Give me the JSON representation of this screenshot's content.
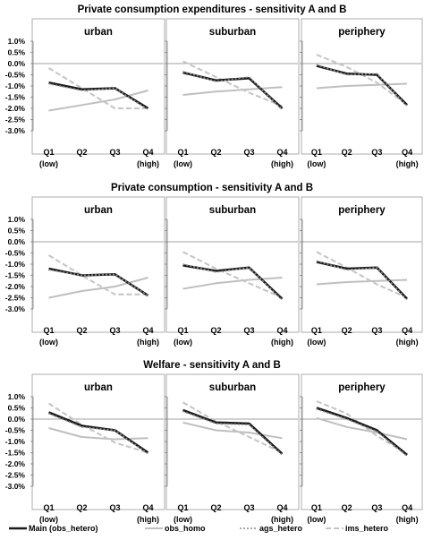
{
  "chart_data": {
    "type": "line",
    "legend": {
      "placement": "bottom",
      "entries": [
        {
          "label": "Main (obs_hetero)",
          "color": "#1a1a1a",
          "style": "thick-solid"
        },
        {
          "label": "obs_homo",
          "color": "#bfbfbf",
          "style": "solid"
        },
        {
          "label": "ags_hetero",
          "color": "#8c8c8c",
          "style": "dotted"
        },
        {
          "label": "ims_hetero",
          "color": "#bfbfbf",
          "style": "dashed"
        }
      ]
    },
    "categories": [
      "Q1",
      "Q2",
      "Q3",
      "Q4"
    ],
    "category_sublabels": [
      "(low)",
      "",
      "",
      "(high)"
    ],
    "ylim": [
      -3.0,
      1.0
    ],
    "ytick_labels": [
      "1.0%",
      "0.5%",
      "0.0%",
      "-0.5%",
      "-1.0%",
      "-1.5%",
      "-2.0%",
      "-2.5%",
      "-3.0%"
    ],
    "ytick_values": [
      1.0,
      0.5,
      0.0,
      -0.5,
      -1.0,
      -1.5,
      -2.0,
      -2.5,
      -3.0
    ],
    "grid": false,
    "rows": [
      {
        "title": "Private consumption expenditures - sensitivity A and B",
        "panels": [
          {
            "title": "urban",
            "series": [
              {
                "key": "main",
                "values": [
                  -0.85,
                  -1.15,
                  -1.1,
                  -2.0
                ]
              },
              {
                "key": "obs_homo",
                "values": [
                  -2.1,
                  -1.85,
                  -1.6,
                  -1.2
                ]
              },
              {
                "key": "ags",
                "values": [
                  -0.9,
                  -1.2,
                  -1.1,
                  -2.05
                ]
              },
              {
                "key": "ims",
                "values": [
                  -0.2,
                  -1.1,
                  -2.0,
                  -2.0
                ]
              }
            ]
          },
          {
            "title": "suburban",
            "series": [
              {
                "key": "main",
                "values": [
                  -0.4,
                  -0.75,
                  -0.65,
                  -2.0
                ]
              },
              {
                "key": "obs_homo",
                "values": [
                  -1.4,
                  -1.25,
                  -1.15,
                  -1.05
                ]
              },
              {
                "key": "ags",
                "values": [
                  -0.35,
                  -0.8,
                  -0.6,
                  -2.05
                ]
              },
              {
                "key": "ims",
                "values": [
                  0.1,
                  -0.6,
                  -1.3,
                  -1.9
                ]
              }
            ]
          },
          {
            "title": "periphery",
            "series": [
              {
                "key": "main",
                "values": [
                  -0.1,
                  -0.45,
                  -0.5,
                  -1.85
                ]
              },
              {
                "key": "obs_homo",
                "values": [
                  -1.1,
                  -1.0,
                  -0.95,
                  -0.9
                ]
              },
              {
                "key": "ags",
                "values": [
                  -0.05,
                  -0.5,
                  -0.45,
                  -1.9
                ]
              },
              {
                "key": "ims",
                "values": [
                  0.4,
                  -0.15,
                  -0.85,
                  -1.85
                ]
              }
            ]
          }
        ]
      },
      {
        "title": "Private consumption - sensitivity A and B",
        "panels": [
          {
            "title": "urban",
            "series": [
              {
                "key": "main",
                "values": [
                  -1.2,
                  -1.5,
                  -1.45,
                  -2.4
                ]
              },
              {
                "key": "obs_homo",
                "values": [
                  -2.5,
                  -2.2,
                  -2.0,
                  -1.6
                ]
              },
              {
                "key": "ags",
                "values": [
                  -1.25,
                  -1.5,
                  -1.45,
                  -2.4
                ]
              },
              {
                "key": "ims",
                "values": [
                  -0.6,
                  -1.5,
                  -2.35,
                  -2.35
                ]
              }
            ]
          },
          {
            "title": "suburban",
            "series": [
              {
                "key": "main",
                "values": [
                  -1.05,
                  -1.3,
                  -1.15,
                  -2.55
                ]
              },
              {
                "key": "obs_homo",
                "values": [
                  -2.1,
                  -1.85,
                  -1.7,
                  -1.6
                ]
              },
              {
                "key": "ags",
                "values": [
                  -1.0,
                  -1.35,
                  -1.15,
                  -2.6
                ]
              },
              {
                "key": "ims",
                "values": [
                  -0.45,
                  -1.2,
                  -1.85,
                  -2.5
                ]
              }
            ]
          },
          {
            "title": "periphery",
            "series": [
              {
                "key": "main",
                "values": [
                  -0.9,
                  -1.2,
                  -1.15,
                  -2.55
                ]
              },
              {
                "key": "obs_homo",
                "values": [
                  -1.9,
                  -1.8,
                  -1.75,
                  -1.7
                ]
              },
              {
                "key": "ags",
                "values": [
                  -0.85,
                  -1.25,
                  -1.15,
                  -2.6
                ]
              },
              {
                "key": "ims",
                "values": [
                  -0.45,
                  -1.15,
                  -1.9,
                  -2.5
                ]
              }
            ]
          }
        ]
      },
      {
        "title": "Welfare  - sensitivity A and B",
        "panels": [
          {
            "title": "urban",
            "series": [
              {
                "key": "main",
                "values": [
                  0.3,
                  -0.3,
                  -0.5,
                  -1.5
                ]
              },
              {
                "key": "obs_homo",
                "values": [
                  -0.4,
                  -0.8,
                  -0.9,
                  -0.85
                ]
              },
              {
                "key": "ags",
                "values": [
                  0.25,
                  -0.35,
                  -0.5,
                  -1.55
                ]
              },
              {
                "key": "ims",
                "values": [
                  0.7,
                  -0.25,
                  -1.05,
                  -1.5
                ]
              }
            ]
          },
          {
            "title": "suburban",
            "series": [
              {
                "key": "main",
                "values": [
                  0.4,
                  -0.15,
                  -0.2,
                  -1.55
                ]
              },
              {
                "key": "obs_homo",
                "values": [
                  -0.15,
                  -0.5,
                  -0.6,
                  -0.85
                ]
              },
              {
                "key": "ags",
                "values": [
                  0.35,
                  -0.2,
                  -0.25,
                  -1.6
                ]
              },
              {
                "key": "ims",
                "values": [
                  0.75,
                  -0.1,
                  -0.8,
                  -1.5
                ]
              }
            ]
          },
          {
            "title": "periphery",
            "series": [
              {
                "key": "main",
                "values": [
                  0.5,
                  0.05,
                  -0.5,
                  -1.6
                ]
              },
              {
                "key": "obs_homo",
                "values": [
                  0.05,
                  -0.35,
                  -0.6,
                  -0.9
                ]
              },
              {
                "key": "ags",
                "values": [
                  0.45,
                  0.0,
                  -0.55,
                  -1.65
                ]
              },
              {
                "key": "ims",
                "values": [
                  0.8,
                  0.25,
                  -0.75,
                  -1.55
                ]
              }
            ]
          }
        ]
      }
    ]
  }
}
